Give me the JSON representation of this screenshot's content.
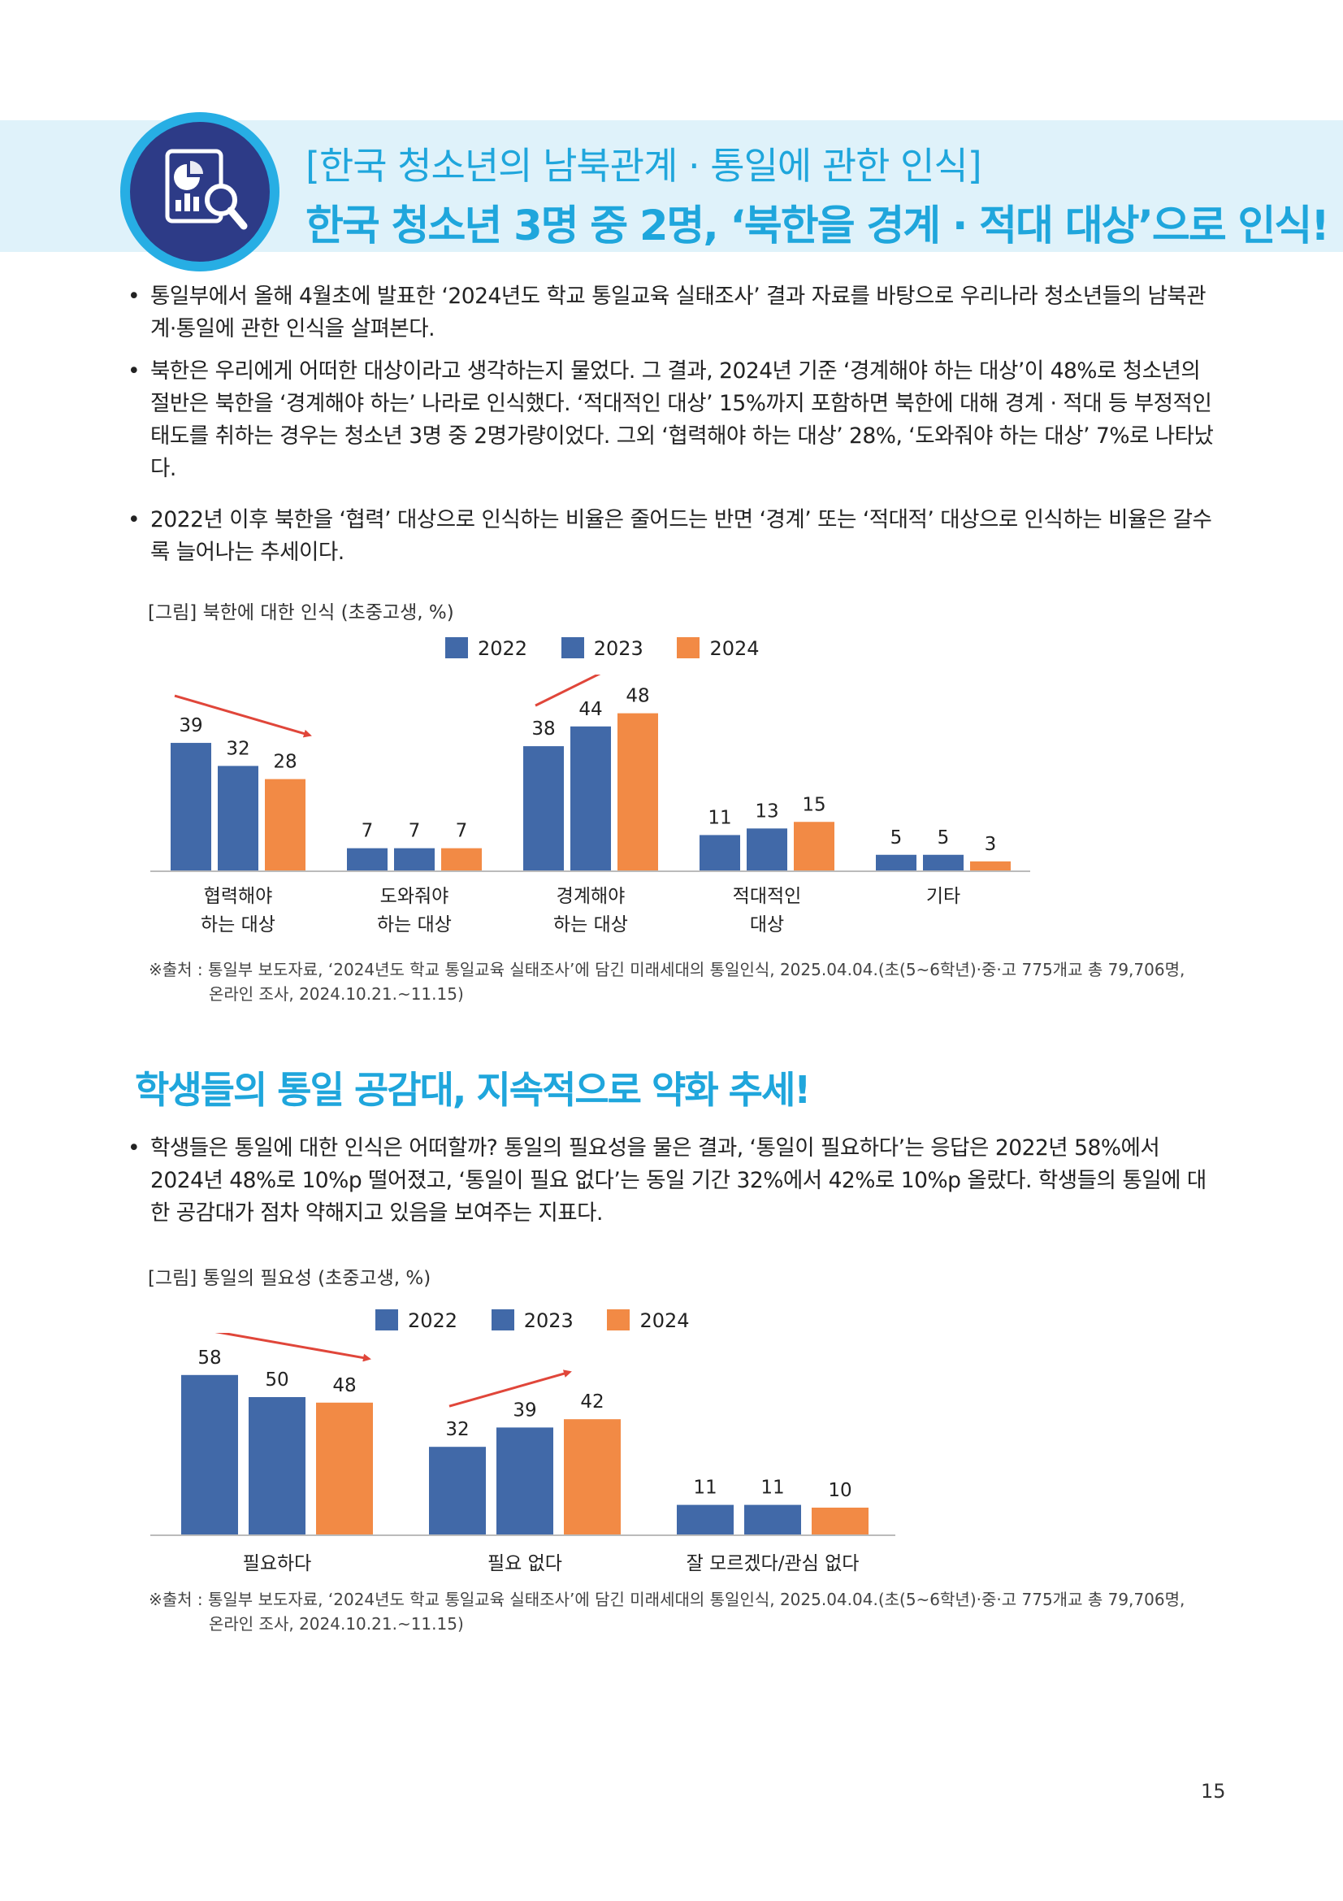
{
  "header": {
    "title_line1": "[한국 청소년의 남북관계 · 통일에 관한 인식]",
    "title_line2": "한국 청소년 3명 중 2명, ‘북한을 경계 · 적대 대상’으로 인식!",
    "badge_icon": "chart-magnifier-icon",
    "colors": {
      "banner_bg": "#dff2fa",
      "title": "#1fa6dc",
      "badge_ring": "#27aee4",
      "badge_fill": "#2d3b87"
    }
  },
  "bullets_top": [
    "통일부에서 올해 4월초에 발표한 ‘2024년도 학교 통일교육 실태조사’ 결과 자료를 바탕으로 우리나라 청소년들의 남북관계·통일에 관한 인식을 살펴본다.",
    "북한은 우리에게 어떠한 대상이라고 생각하는지 물었다. 그 결과, 2024년 기준 ‘경계해야 하는 대상’이 48%로 청소년의 절반은 북한을 ‘경계해야 하는’ 나라로 인식했다. ‘적대적인 대상’ 15%까지 포함하면 북한에 대해 경계 · 적대 등 부정적인 태도를 취하는 경우는 청소년 3명 중 2명가량이었다. 그외 ‘협력해야 하는 대상’ 28%, ‘도와줘야 하는 대상’ 7%로 나타났다.",
    "2022년 이후 북한을 ‘협력’ 대상으로 인식하는 비율은 줄어드는 반면 ‘경계’ 또는 ‘적대적’ 대상으로 인식하는 비율은 갈수록 늘어나는 추세이다."
  ],
  "figure1": {
    "caption": "[그림] 북한에 대한 인식 (초중고생, %)"
  },
  "figure2": {
    "caption": "[그림] 통일의 필요성 (초중고생, %)"
  },
  "legend": [
    "2022",
    "2023",
    "2024"
  ],
  "series_colors": [
    "#4169a8",
    "#4169a8",
    "#f28a45"
  ],
  "source_note": {
    "line1": "※출처 : 통일부 보도자료, ‘2024년도 학교 통일교육 실태조사’에 담긴 미래세대의 통일인식, 2025.04.04.(초(5~6학년)·중·고 775개교 총 79,706명,",
    "line2": "온라인 조사, 2024.10.21.~11.15)"
  },
  "section2": {
    "title": "학생들의 통일 공감대, 지속적으로 약화 추세!",
    "bullet": "학생들은 통일에 대한 인식은 어떠할까? 통일의 필요성을 물은 결과, ‘통일이 필요하다’는 응답은 2022년 58%에서 2024년 48%로 10%p 떨어졌고, ‘통일이 필요 없다’는 동일 기간 32%에서 42%로 10%p 올랐다. 학생들의 통일에 대한 공감대가 점차 약해지고 있음을 보여주는 지표다."
  },
  "page_number": "15",
  "chart_data": [
    {
      "type": "bar",
      "title": "[그림] 북한에 대한 인식 (초중고생, %)",
      "categories": [
        [
          "협력해야",
          "하는 대상"
        ],
        [
          "도와줘야",
          "하는 대상"
        ],
        [
          "경계해야",
          "하는 대상"
        ],
        [
          "적대적인",
          "대상"
        ],
        [
          "기타"
        ]
      ],
      "series": [
        {
          "name": "2022",
          "values": [
            39,
            7,
            38,
            11,
            5
          ]
        },
        {
          "name": "2023",
          "values": [
            32,
            7,
            44,
            13,
            5
          ]
        },
        {
          "name": "2024",
          "values": [
            28,
            7,
            48,
            15,
            3
          ]
        }
      ],
      "ylim": [
        0,
        60
      ],
      "grid": false,
      "legend": "top",
      "trend_arrows": [
        "down",
        "none",
        "up",
        "none",
        "none"
      ]
    },
    {
      "type": "bar",
      "title": "[그림] 통일의 필요성 (초중고생, %)",
      "categories": [
        [
          "필요하다"
        ],
        [
          "필요 없다"
        ],
        [
          "잘 모르겠다/관심 없다"
        ]
      ],
      "series": [
        {
          "name": "2022",
          "values": [
            58,
            32,
            11
          ]
        },
        {
          "name": "2023",
          "values": [
            50,
            39,
            11
          ]
        },
        {
          "name": "2024",
          "values": [
            48,
            42,
            10
          ]
        }
      ],
      "ylim": [
        0,
        60
      ],
      "grid": false,
      "legend": "top",
      "trend_arrows": [
        "down",
        "up",
        "none"
      ]
    }
  ]
}
